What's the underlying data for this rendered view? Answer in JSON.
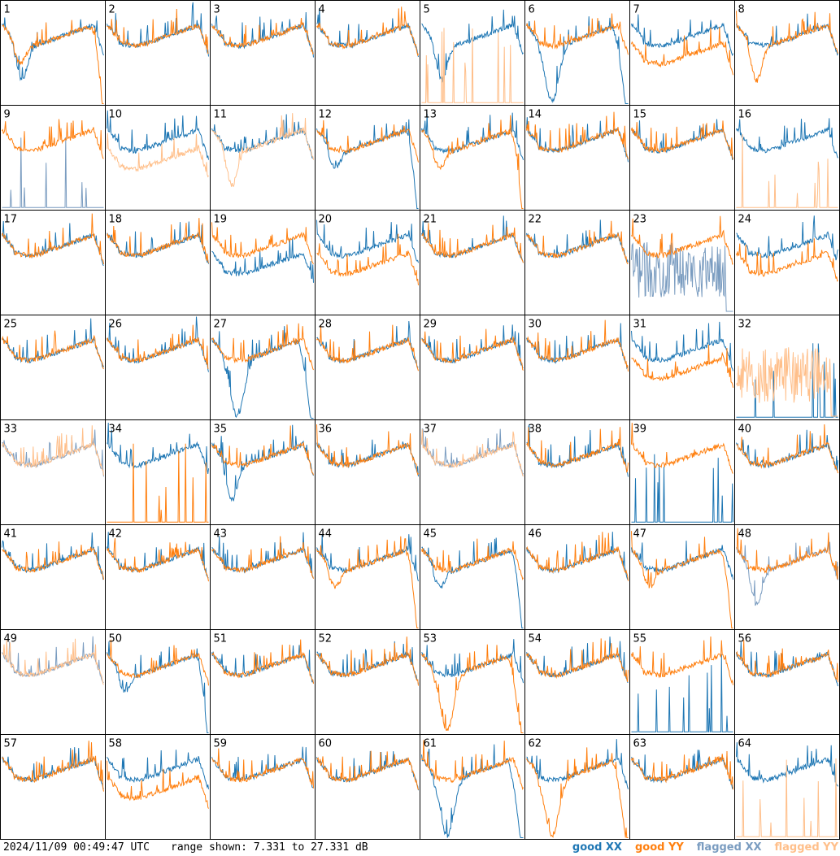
{
  "chart_data": {
    "type": "line",
    "timestamp": "2024/11/09 00:49:47 UTC",
    "range_text": "range shown: 7.331 to 27.331 dB",
    "range_db": [
      7.331,
      27.331
    ],
    "grid": {
      "rows": 8,
      "cols": 8
    },
    "colors": {
      "good_xx": "#1f77b4",
      "good_yy": "#ff7f0e",
      "flagged_xx": "#7a9cc0",
      "flagged_yy": "#ffbf8a"
    },
    "legend": [
      {
        "key": "good_xx",
        "prefix": "good",
        "pol": "XX"
      },
      {
        "key": "good_yy",
        "prefix": "good",
        "pol": "YY"
      },
      {
        "key": "flagged_xx",
        "prefix": "flagged",
        "pol": "XX"
      },
      {
        "key": "flagged_yy",
        "prefix": "flagged",
        "pol": "YY"
      }
    ],
    "tiles": [
      {
        "label": "1",
        "xx": "dip",
        "yy": "rolloff",
        "xxf": false,
        "yyf": false
      },
      {
        "label": "2",
        "xx": "normal",
        "yy": "normal",
        "xxf": false,
        "yyf": false
      },
      {
        "label": "3",
        "xx": "normal",
        "yy": "normal",
        "xxf": false,
        "yyf": false
      },
      {
        "label": "4",
        "xx": "normal",
        "yy": "normal",
        "xxf": false,
        "yyf": false
      },
      {
        "label": "5",
        "xx": "dip",
        "yy": "dead",
        "xxf": false,
        "yyf": true
      },
      {
        "label": "6",
        "xx": "bigdip",
        "yy": "normal",
        "xxf": false,
        "yyf": false
      },
      {
        "label": "7",
        "xx": "normal",
        "yy": "low",
        "xxf": false,
        "yyf": false
      },
      {
        "label": "8",
        "xx": "normal",
        "yy": "dip",
        "xxf": false,
        "yyf": false
      },
      {
        "label": "9",
        "xx": "dead",
        "yy": "normal",
        "xxf": true,
        "yyf": false
      },
      {
        "label": "10",
        "xx": "normal",
        "yy": "low",
        "xxf": false,
        "yyf": true
      },
      {
        "label": "11",
        "xx": "normal",
        "yy": "dip",
        "xxf": false,
        "yyf": true
      },
      {
        "label": "12",
        "xx": "rolloff",
        "yy": "normal",
        "xxf": false,
        "yyf": false
      },
      {
        "label": "13",
        "xx": "normal",
        "yy": "rolloff",
        "xxf": false,
        "yyf": false
      },
      {
        "label": "14",
        "xx": "normal",
        "yy": "normal",
        "xxf": false,
        "yyf": false
      },
      {
        "label": "15",
        "xx": "normal",
        "yy": "normal",
        "xxf": false,
        "yyf": false
      },
      {
        "label": "16",
        "xx": "normal",
        "yy": "dead",
        "xxf": false,
        "yyf": true
      },
      {
        "label": "17",
        "xx": "normal",
        "yy": "normal",
        "xxf": false,
        "yyf": false
      },
      {
        "label": "18",
        "xx": "normal",
        "yy": "normal",
        "xxf": false,
        "yyf": false
      },
      {
        "label": "19",
        "xx": "low",
        "yy": "normal",
        "xxf": false,
        "yyf": false
      },
      {
        "label": "20",
        "xx": "normal",
        "yy": "low",
        "xxf": false,
        "yyf": false
      },
      {
        "label": "21",
        "xx": "normal",
        "yy": "normal",
        "xxf": false,
        "yyf": false
      },
      {
        "label": "22",
        "xx": "normal",
        "yy": "normal",
        "xxf": false,
        "yyf": false
      },
      {
        "label": "23",
        "xx": "noisy",
        "yy": "normal",
        "xxf": true,
        "yyf": false
      },
      {
        "label": "24",
        "xx": "normal",
        "yy": "low",
        "xxf": false,
        "yyf": false
      },
      {
        "label": "25",
        "xx": "normal",
        "yy": "normal",
        "xxf": false,
        "yyf": false
      },
      {
        "label": "26",
        "xx": "normal",
        "yy": "normal",
        "xxf": false,
        "yyf": false
      },
      {
        "label": "27",
        "xx": "bigdip",
        "yy": "normal",
        "xxf": false,
        "yyf": false
      },
      {
        "label": "28",
        "xx": "normal",
        "yy": "normal",
        "xxf": false,
        "yyf": false
      },
      {
        "label": "29",
        "xx": "normal",
        "yy": "normal",
        "xxf": false,
        "yyf": false
      },
      {
        "label": "30",
        "xx": "normal",
        "yy": "normal",
        "xxf": false,
        "yyf": false
      },
      {
        "label": "31",
        "xx": "normal",
        "yy": "low",
        "xxf": false,
        "yyf": false
      },
      {
        "label": "32",
        "xx": "dead",
        "yy": "noisy",
        "xxf": false,
        "yyf": true
      },
      {
        "label": "33",
        "xx": "normal",
        "yy": "normal",
        "xxf": true,
        "yyf": true
      },
      {
        "label": "34",
        "xx": "normal",
        "yy": "dead",
        "xxf": false,
        "yyf": false
      },
      {
        "label": "35",
        "xx": "dip",
        "yy": "normal",
        "xxf": false,
        "yyf": false
      },
      {
        "label": "36",
        "xx": "normal",
        "yy": "normal",
        "xxf": false,
        "yyf": false
      },
      {
        "label": "37",
        "xx": "normal",
        "yy": "normal",
        "xxf": true,
        "yyf": true
      },
      {
        "label": "38",
        "xx": "normal",
        "yy": "normal",
        "xxf": false,
        "yyf": false
      },
      {
        "label": "39",
        "xx": "dead",
        "yy": "normal",
        "xxf": false,
        "yyf": false
      },
      {
        "label": "40",
        "xx": "normal",
        "yy": "normal",
        "xxf": false,
        "yyf": false
      },
      {
        "label": "41",
        "xx": "normal",
        "yy": "normal",
        "xxf": false,
        "yyf": false
      },
      {
        "label": "42",
        "xx": "normal",
        "yy": "normal",
        "xxf": false,
        "yyf": false
      },
      {
        "label": "43",
        "xx": "normal",
        "yy": "normal",
        "xxf": false,
        "yyf": false
      },
      {
        "label": "44",
        "xx": "normal",
        "yy": "rolloff",
        "xxf": false,
        "yyf": false
      },
      {
        "label": "45",
        "xx": "rolloff",
        "yy": "normal",
        "xxf": false,
        "yyf": false
      },
      {
        "label": "46",
        "xx": "normal",
        "yy": "normal",
        "xxf": false,
        "yyf": false
      },
      {
        "label": "47",
        "xx": "normal",
        "yy": "rolloff",
        "xxf": false,
        "yyf": false
      },
      {
        "label": "48",
        "xx": "dip",
        "yy": "normal",
        "xxf": true,
        "yyf": false
      },
      {
        "label": "49",
        "xx": "normal",
        "yy": "normal",
        "xxf": true,
        "yyf": true
      },
      {
        "label": "50",
        "xx": "rolloff",
        "yy": "normal",
        "xxf": false,
        "yyf": false
      },
      {
        "label": "51",
        "xx": "normal",
        "yy": "normal",
        "xxf": false,
        "yyf": false
      },
      {
        "label": "52",
        "xx": "normal",
        "yy": "normal",
        "xxf": false,
        "yyf": false
      },
      {
        "label": "53",
        "xx": "normal",
        "yy": "bigdip",
        "xxf": false,
        "yyf": false
      },
      {
        "label": "54",
        "xx": "normal",
        "yy": "normal",
        "xxf": false,
        "yyf": false
      },
      {
        "label": "55",
        "xx": "dead",
        "yy": "normal",
        "xxf": false,
        "yyf": false
      },
      {
        "label": "56",
        "xx": "normal",
        "yy": "normal",
        "xxf": false,
        "yyf": false
      },
      {
        "label": "57",
        "xx": "normal",
        "yy": "normal",
        "xxf": false,
        "yyf": false
      },
      {
        "label": "58",
        "xx": "normal",
        "yy": "low",
        "xxf": false,
        "yyf": false
      },
      {
        "label": "59",
        "xx": "normal",
        "yy": "normal",
        "xxf": false,
        "yyf": false
      },
      {
        "label": "60",
        "xx": "normal",
        "yy": "normal",
        "xxf": false,
        "yyf": false
      },
      {
        "label": "61",
        "xx": "bigdip",
        "yy": "normal",
        "xxf": false,
        "yyf": false
      },
      {
        "label": "62",
        "xx": "normal",
        "yy": "bigdip",
        "xxf": false,
        "yyf": false
      },
      {
        "label": "63",
        "xx": "normal",
        "yy": "normal",
        "xxf": false,
        "yyf": false
      },
      {
        "label": "64",
        "xx": "normal",
        "yy": "dead",
        "xxf": false,
        "yyf": true
      }
    ]
  }
}
